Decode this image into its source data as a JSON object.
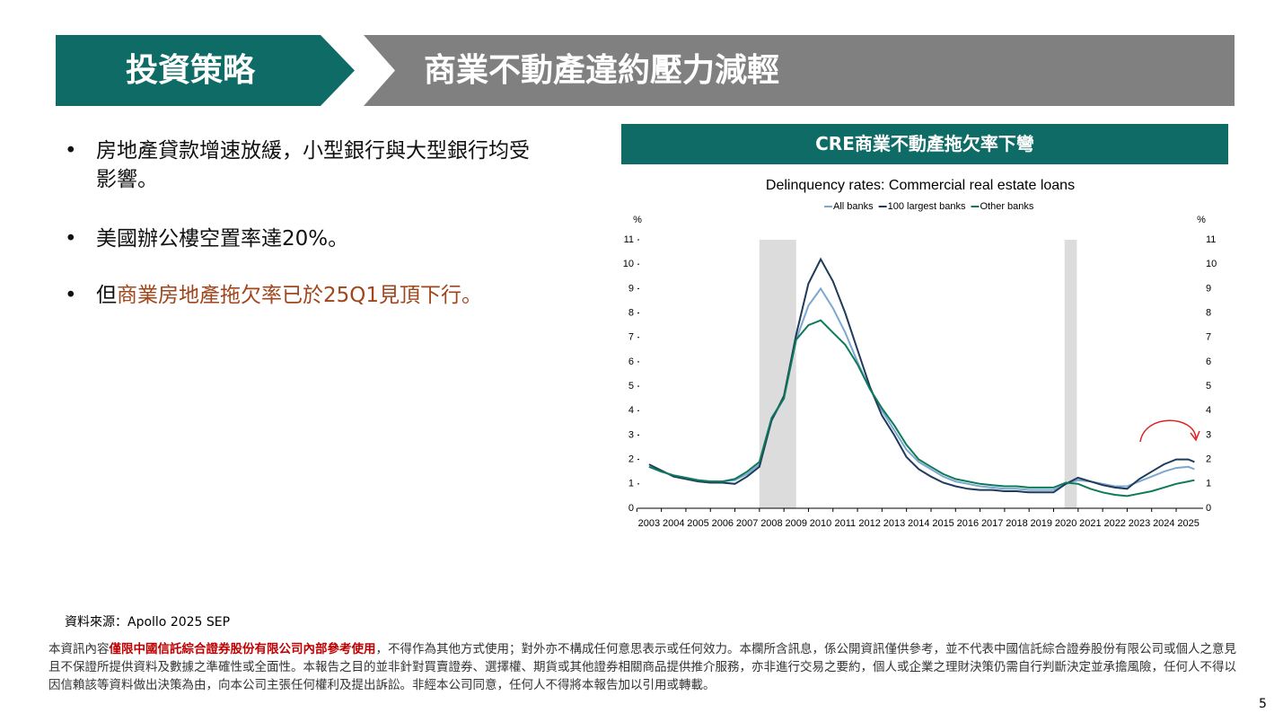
{
  "header": {
    "section": "投資策略",
    "title": "商業不動產違約壓力減輕"
  },
  "bullets": [
    {
      "text": "房地產貸款增速放緩，小型銀行與大型銀行均受影響。"
    },
    {
      "text": "美國辦公樓空置率達20%。"
    },
    {
      "prefix": "但",
      "highlight": "商業房地產拖欠率已於25Q1見頂下行。"
    }
  ],
  "chart_panel_title": "CRE商業不動產拖欠率下彎",
  "chart_data": {
    "type": "line",
    "title": "Delinquency rates: Commercial real estate loans",
    "y_unit": "%",
    "x": [
      2003,
      2003.5,
      2004,
      2004.5,
      2005,
      2005.5,
      2006,
      2006.5,
      2007,
      2007.5,
      2008,
      2008.5,
      2009,
      2009.5,
      2010,
      2010.5,
      2011,
      2011.5,
      2012,
      2012.5,
      2013,
      2013.5,
      2014,
      2014.5,
      2015,
      2015.5,
      2016,
      2016.5,
      2017,
      2017.5,
      2018,
      2018.5,
      2019,
      2019.5,
      2020,
      2020.5,
      2021,
      2021.5,
      2022,
      2022.5,
      2023,
      2023.5,
      2024,
      2024.5,
      2025,
      2025.25
    ],
    "series": [
      {
        "name": "All banks",
        "color": "#7ba7d1",
        "values": [
          1.7,
          1.5,
          1.35,
          1.25,
          1.15,
          1.1,
          1.1,
          1.15,
          1.4,
          1.8,
          3.6,
          4.5,
          6.9,
          8.3,
          9.0,
          8.2,
          7.2,
          6.0,
          4.9,
          4.0,
          3.2,
          2.4,
          1.9,
          1.6,
          1.3,
          1.1,
          1.0,
          0.9,
          0.85,
          0.8,
          0.8,
          0.75,
          0.75,
          0.75,
          1.0,
          1.15,
          1.1,
          1.0,
          0.9,
          0.9,
          1.1,
          1.3,
          1.5,
          1.65,
          1.7,
          1.6
        ]
      },
      {
        "name": "100 largest banks",
        "color": "#1f3a5a",
        "values": [
          1.8,
          1.55,
          1.3,
          1.2,
          1.1,
          1.05,
          1.05,
          1.0,
          1.3,
          1.7,
          3.6,
          4.6,
          7.1,
          9.2,
          10.2,
          9.3,
          8.0,
          6.5,
          5.0,
          3.8,
          3.0,
          2.1,
          1.6,
          1.3,
          1.05,
          0.9,
          0.8,
          0.75,
          0.75,
          0.7,
          0.7,
          0.65,
          0.65,
          0.65,
          1.0,
          1.25,
          1.1,
          0.95,
          0.85,
          0.8,
          1.2,
          1.5,
          1.8,
          2.0,
          2.0,
          1.9
        ]
      },
      {
        "name": "Other banks",
        "color": "#0d7a5a",
        "values": [
          1.7,
          1.5,
          1.35,
          1.25,
          1.15,
          1.1,
          1.1,
          1.2,
          1.5,
          1.9,
          3.7,
          4.5,
          6.9,
          7.5,
          7.7,
          7.2,
          6.7,
          5.9,
          4.9,
          4.1,
          3.4,
          2.6,
          2.0,
          1.7,
          1.4,
          1.2,
          1.1,
          1.0,
          0.95,
          0.9,
          0.9,
          0.85,
          0.85,
          0.85,
          1.05,
          1.0,
          0.8,
          0.65,
          0.55,
          0.5,
          0.6,
          0.7,
          0.85,
          1.0,
          1.1,
          1.15
        ]
      }
    ],
    "recessions": [
      [
        2007.5,
        2009.0
      ],
      [
        2019.95,
        2020.45
      ]
    ],
    "xlim": [
      2002.6,
      2025.6
    ],
    "xticks": [
      2003,
      2004,
      2005,
      2006,
      2007,
      2008,
      2009,
      2010,
      2011,
      2012,
      2013,
      2014,
      2015,
      2016,
      2017,
      2018,
      2019,
      2020,
      2021,
      2022,
      2023,
      2024,
      2025
    ],
    "ylim": [
      0,
      11
    ],
    "yticks": [
      0,
      1,
      2,
      3,
      4,
      5,
      6,
      7,
      8,
      9,
      10,
      11
    ],
    "y2lim": [
      0,
      11
    ],
    "y2ticks": [
      0,
      1,
      2,
      3,
      4,
      5,
      6,
      7,
      8,
      9,
      10,
      11
    ]
  },
  "source": "資料來源：Apollo 2025 SEP",
  "disclaimer": {
    "prefix": "本資訊內容",
    "highlight": "僅限中國信託綜合證券股份有限公司內部參考使用",
    "rest": "，不得作為其他方式使用；對外亦不構成任何意思表示或任何效力。本欄所含訊息，係公開資訊僅供參考，並不代表中國信託綜合證券股份有限公司或個人之意見且不保證所提供資料及數據之準確性或全面性。本報告之目的並非針對買賣證券、選擇權、期貨或其他證券相關商品提供推介服務，亦非進行交易之要約，個人或企業之理財決策仍需自行判斷決定並承擔風險，任何人不得以因信賴該等資料做出決策為由，向本公司主張任何權利及提出訴訟。非經本公司同意，任何人不得將本報告加以引用或轉載。"
  },
  "page_number": "5"
}
